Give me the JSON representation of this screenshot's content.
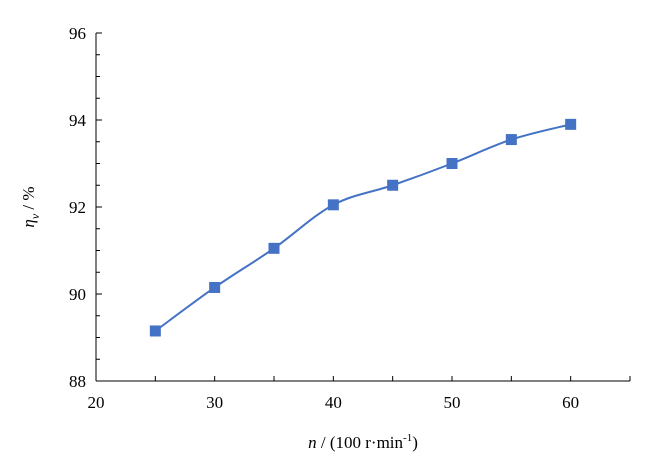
{
  "chart_data": {
    "type": "line",
    "title": "",
    "xlabel": {
      "var": "n",
      "rest": " / (100 r·min",
      "sup": "-1",
      "close": ")"
    },
    "ylabel": {
      "var": "η",
      "sub": "v",
      "rest": " / %"
    },
    "xlim": [
      20,
      65
    ],
    "ylim": [
      88,
      96
    ],
    "xticks": [
      20,
      30,
      40,
      50,
      60
    ],
    "yticks": [
      88,
      90,
      92,
      94,
      96
    ],
    "x_minor_step": 5,
    "y_minor_step": 0.5,
    "grid": false,
    "legend": "none",
    "series": [
      {
        "color": "#4472C4",
        "marker": "square",
        "smooth": true,
        "x": [
          25,
          30,
          35,
          40,
          45,
          50,
          55,
          60
        ],
        "y": [
          89.15,
          90.15,
          91.05,
          92.05,
          92.5,
          93.0,
          93.55,
          93.9
        ]
      }
    ]
  }
}
